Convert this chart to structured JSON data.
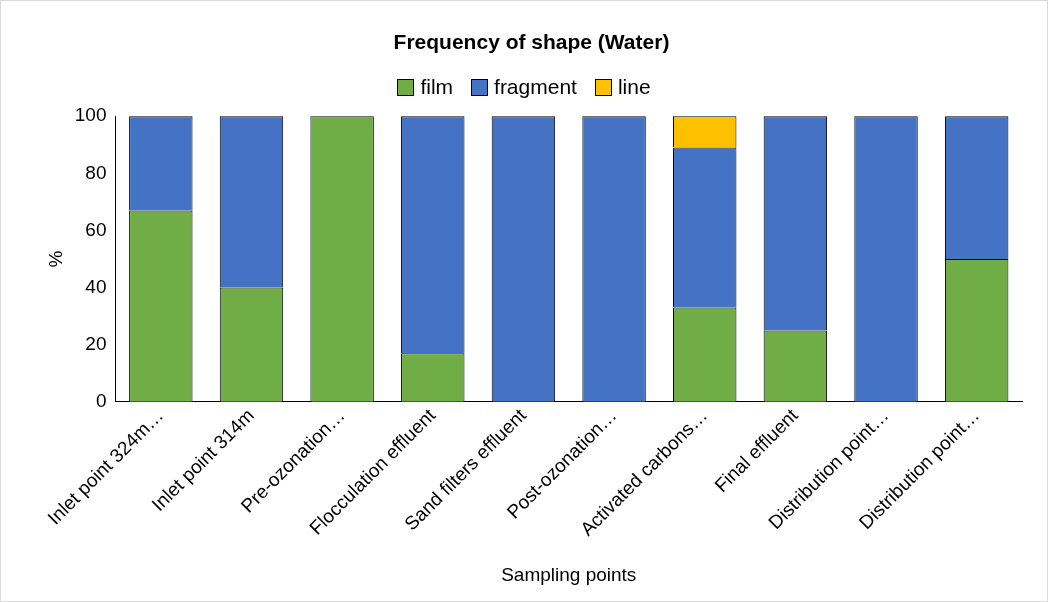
{
  "chart_data": {
    "type": "bar",
    "title": "Frequency of shape (Water)",
    "xlabel": "Sampling points",
    "ylabel": "%",
    "categories": [
      "Inlet point 324m…",
      "Inlet point 314m",
      "Pre-ozonation…",
      "Flocculation effluent",
      "Sand filters effluent",
      "Post-ozonation…",
      "Activated carbons…",
      "Final effluent",
      "Distribution point…",
      "Distribution point…"
    ],
    "series": [
      {
        "name": "film",
        "color": "#70ad47",
        "values": [
          67,
          40,
          100,
          17,
          0,
          0,
          33,
          25,
          0,
          50
        ]
      },
      {
        "name": "fragment",
        "color": "#4472c4",
        "values": [
          33,
          60,
          0,
          83,
          100,
          100,
          56,
          75,
          100,
          50
        ]
      },
      {
        "name": "line",
        "color": "#ffc000",
        "values": [
          0,
          0,
          0,
          0,
          0,
          0,
          11,
          0,
          0,
          0
        ]
      }
    ],
    "stacked": true,
    "ylim": [
      0,
      100
    ],
    "yticks": [
      0,
      20,
      40,
      60,
      80,
      100
    ],
    "grid": false,
    "legend": "top"
  }
}
